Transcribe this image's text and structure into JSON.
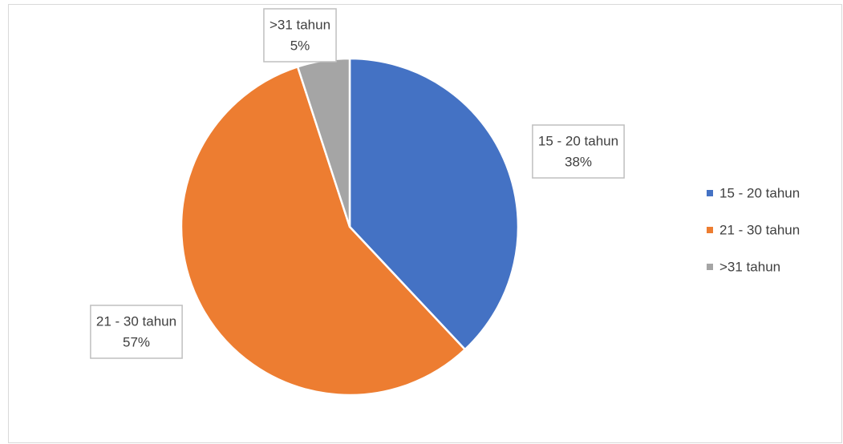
{
  "chart_data": {
    "type": "pie",
    "categories": [
      "15 - 20 tahun",
      "21 - 30 tahun",
      ">31 tahun"
    ],
    "values": [
      38,
      57,
      5
    ],
    "value_labels": [
      "38%",
      "57%",
      "5%"
    ],
    "colors": [
      "#4472c4",
      "#ed7d31",
      "#a5a5a5"
    ],
    "legend": "right"
  }
}
